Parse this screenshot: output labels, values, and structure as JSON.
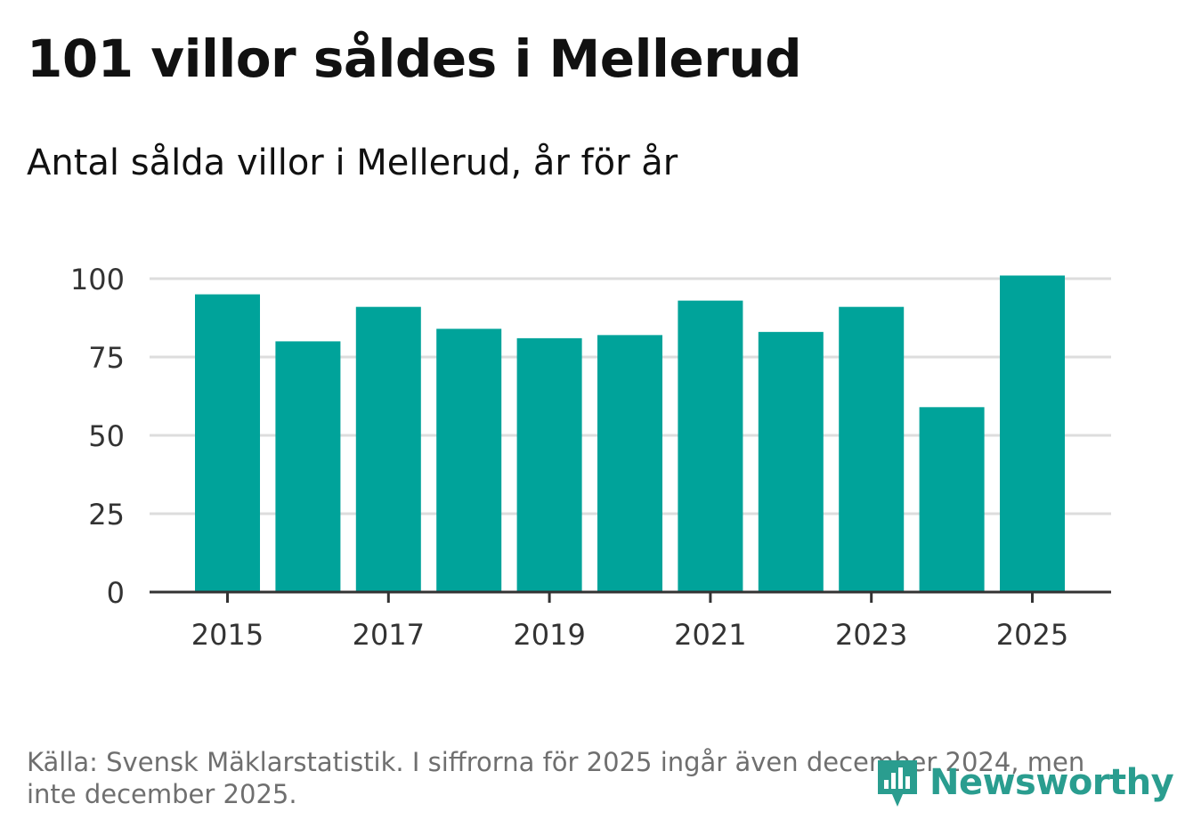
{
  "title": "101 villor såldes i Mellerud",
  "subtitle": "Antal sålda villor i Mellerud, år för år",
  "source": "Källa: Svensk Mäklarstatistik. I siffrorna för 2025 ingår även december 2024, men inte december 2025.",
  "logo": {
    "text": "Newsworthy",
    "icon": "newsworthy-bar-icon",
    "color": "#2a9d8f"
  },
  "colors": {
    "bar": "#00a39a",
    "grid": "#dddddd",
    "axis": "#333333"
  },
  "chart_data": {
    "type": "bar",
    "title": "101 villor såldes i Mellerud",
    "subtitle": "Antal sålda villor i Mellerud, år för år",
    "xlabel": "",
    "ylabel": "",
    "categories": [
      "2015",
      "2016",
      "2017",
      "2018",
      "2019",
      "2020",
      "2021",
      "2022",
      "2023",
      "2024",
      "2025"
    ],
    "values": [
      95,
      80,
      91,
      84,
      81,
      82,
      93,
      83,
      91,
      59,
      101
    ],
    "ylim": [
      0,
      100
    ],
    "yticks": [
      "0",
      "25",
      "50",
      "75",
      "100"
    ],
    "xticks_shown": [
      "2015",
      "2017",
      "2019",
      "2021",
      "2023",
      "2025"
    ],
    "grid": true,
    "legend": "none"
  }
}
